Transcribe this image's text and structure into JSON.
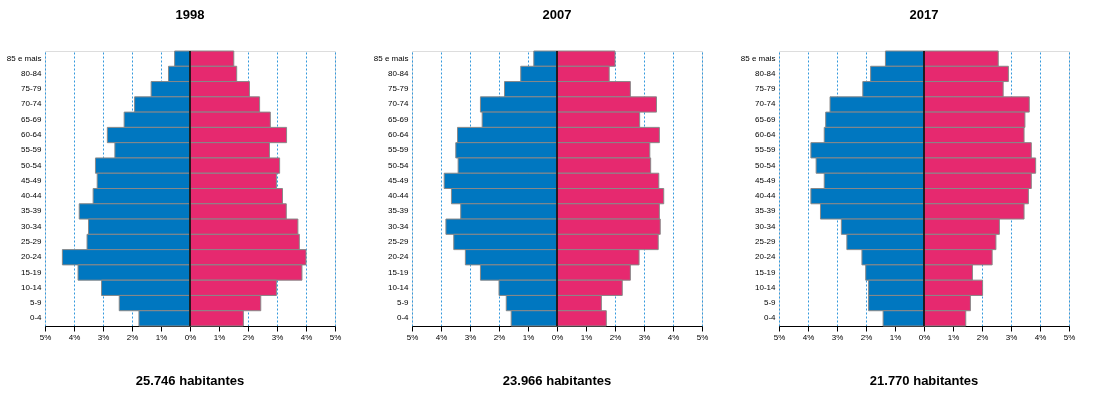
{
  "chart_data": [
    {
      "type": "bar",
      "orientation": "horizontal",
      "title": "1998",
      "categories": [
        "85 e mais",
        "80-84",
        "75-79",
        "70-74",
        "65-69",
        "60-64",
        "55-59",
        "50-54",
        "45-49",
        "40-44",
        "35-39",
        "30-34",
        "25-29",
        "20-24",
        "15-19",
        "10-14",
        "5-9",
        "0-4"
      ],
      "series": [
        {
          "color": "#0077c0",
          "values": [
            -0.53,
            -0.74,
            -1.34,
            -1.91,
            -2.27,
            -2.85,
            -2.59,
            -3.26,
            -3.2,
            -3.34,
            -3.82,
            -3.5,
            -3.55,
            -4.4,
            -3.86,
            -3.05,
            -2.44,
            -1.76
          ]
        },
        {
          "color": "#e6296f",
          "values": [
            1.51,
            1.61,
            2.05,
            2.4,
            2.77,
            3.33,
            2.74,
            3.09,
            2.98,
            3.19,
            3.32,
            3.72,
            3.77,
            4.0,
            3.86,
            2.98,
            2.44,
            1.84
          ]
        }
      ],
      "xlim": [
        -5,
        5
      ],
      "xticks": [
        {
          "value": -5,
          "label": "5%"
        },
        {
          "value": -4,
          "label": "4%"
        },
        {
          "value": -3,
          "label": "3%"
        },
        {
          "value": -2,
          "label": "2%"
        },
        {
          "value": -1,
          "label": "1%"
        },
        {
          "value": 0,
          "label": "0%"
        },
        {
          "value": 1,
          "label": "1%"
        },
        {
          "value": 2,
          "label": "2%"
        },
        {
          "value": 3,
          "label": "3%"
        },
        {
          "value": 4,
          "label": "4%"
        },
        {
          "value": 5,
          "label": "5%"
        }
      ],
      "grid": "x",
      "stacked": true,
      "ref_lines": [
        {
          "axis": "x",
          "value": 0,
          "color": "#000000"
        }
      ],
      "annotations": [
        "25.746 habitantes"
      ]
    },
    {
      "type": "bar",
      "orientation": "horizontal",
      "title": "2007",
      "categories": [
        "85 e mais",
        "80-84",
        "75-79",
        "70-74",
        "65-69",
        "60-64",
        "55-59",
        "50-54",
        "45-49",
        "40-44",
        "35-39",
        "30-34",
        "25-29",
        "20-24",
        "15-19",
        "10-14",
        "5-9",
        "0-4"
      ],
      "series": [
        {
          "color": "#0077c0",
          "values": [
            -0.8,
            -1.25,
            -1.81,
            -2.64,
            -2.58,
            -3.43,
            -3.49,
            -3.41,
            -3.89,
            -3.64,
            -3.32,
            -3.83,
            -3.56,
            -3.16,
            -2.64,
            -2.0,
            -1.75,
            -1.58
          ]
        },
        {
          "color": "#e6296f",
          "values": [
            2.0,
            1.8,
            2.53,
            3.43,
            2.85,
            3.53,
            3.2,
            3.23,
            3.51,
            3.68,
            3.53,
            3.56,
            3.49,
            2.83,
            2.53,
            2.25,
            1.53,
            1.7
          ]
        }
      ],
      "xlim": [
        -5,
        5
      ],
      "xticks": [
        {
          "value": -5,
          "label": "5%"
        },
        {
          "value": -4,
          "label": "4%"
        },
        {
          "value": -3,
          "label": "3%"
        },
        {
          "value": -2,
          "label": "2%"
        },
        {
          "value": -1,
          "label": "1%"
        },
        {
          "value": 0,
          "label": "0%"
        },
        {
          "value": 1,
          "label": "1%"
        },
        {
          "value": 2,
          "label": "2%"
        },
        {
          "value": 3,
          "label": "3%"
        },
        {
          "value": 4,
          "label": "4%"
        },
        {
          "value": 5,
          "label": "5%"
        }
      ],
      "grid": "x",
      "stacked": true,
      "ref_lines": [
        {
          "axis": "x",
          "value": 0,
          "color": "#000000"
        }
      ],
      "annotations": [
        "23.966 habitantes"
      ]
    },
    {
      "type": "bar",
      "orientation": "horizontal",
      "title": "2017",
      "categories": [
        "85 e mais",
        "80-84",
        "75-79",
        "70-74",
        "65-69",
        "60-64",
        "55-59",
        "50-54",
        "45-49",
        "40-44",
        "35-39",
        "30-34",
        "25-29",
        "20-24",
        "15-19",
        "10-14",
        "5-9",
        "0-4"
      ],
      "series": [
        {
          "color": "#0077c0",
          "values": [
            -1.33,
            -1.84,
            -2.11,
            -3.24,
            -3.39,
            -3.44,
            -3.9,
            -3.72,
            -3.44,
            -3.9,
            -3.57,
            -2.85,
            -2.66,
            -2.14,
            -2.01,
            -1.91,
            -1.91,
            -1.41
          ]
        },
        {
          "color": "#e6296f",
          "values": [
            2.56,
            2.91,
            2.73,
            3.63,
            3.48,
            3.45,
            3.7,
            3.85,
            3.7,
            3.6,
            3.45,
            2.6,
            2.48,
            2.35,
            1.67,
            2.02,
            1.6,
            1.44
          ]
        }
      ],
      "xlim": [
        -5,
        5
      ],
      "xticks": [
        {
          "value": -5,
          "label": "5%"
        },
        {
          "value": -4,
          "label": "4%"
        },
        {
          "value": -3,
          "label": "3%"
        },
        {
          "value": -2,
          "label": "2%"
        },
        {
          "value": -1,
          "label": "1%"
        },
        {
          "value": 0,
          "label": "0%"
        },
        {
          "value": 1,
          "label": "1%"
        },
        {
          "value": 2,
          "label": "2%"
        },
        {
          "value": 3,
          "label": "3%"
        },
        {
          "value": 4,
          "label": "4%"
        },
        {
          "value": 5,
          "label": "5%"
        }
      ],
      "grid": "x",
      "stacked": true,
      "ref_lines": [
        {
          "axis": "x",
          "value": 0,
          "color": "#000000"
        }
      ],
      "annotations": [
        "21.770 habitantes"
      ]
    }
  ]
}
